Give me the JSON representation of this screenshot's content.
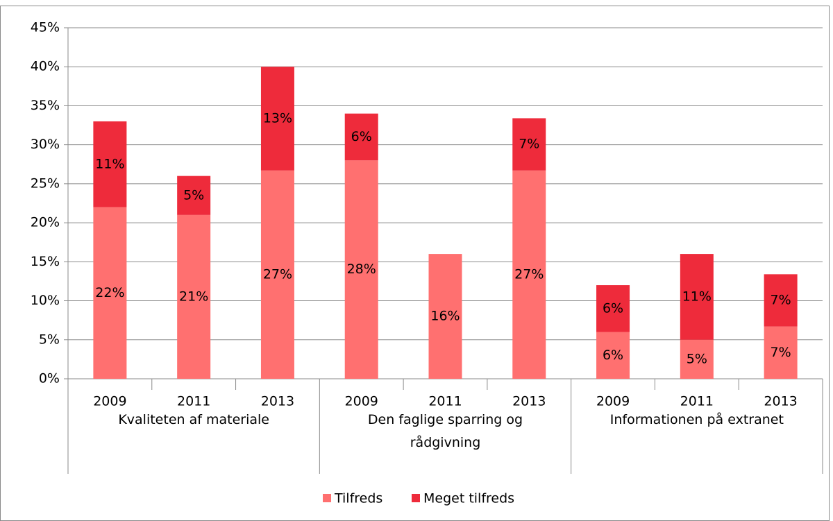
{
  "chart_data": {
    "type": "stacked_bar",
    "categories": [
      "2009",
      "2011",
      "2013",
      "2009",
      "2011",
      "2013",
      "2009",
      "2011",
      "2013"
    ],
    "groups": [
      "Kvaliteten af materiale",
      "Den faglige sparring og rådgivning",
      "Informationen på extranet"
    ],
    "series": [
      {
        "name": "Tilfreds",
        "color": "#ff7070",
        "values": [
          22,
          21,
          26.7,
          28,
          16,
          26.7,
          6,
          5,
          6.7
        ],
        "value_labels": [
          "22%",
          "21%",
          "27%",
          "28%",
          "16%",
          "27%",
          "6%",
          "5%",
          "7%"
        ]
      },
      {
        "name": "Meget tilfreds",
        "color": "#ee2b3b",
        "values": [
          11,
          5,
          13.3,
          6,
          null,
          6.7,
          6,
          11,
          6.7
        ],
        "value_labels": [
          "11%",
          "5%",
          "13%",
          "6%",
          null,
          "7%",
          "6%",
          "11%",
          "7%"
        ]
      }
    ],
    "ylim": [
      0,
      45
    ],
    "yticks": [
      {
        "value": 0,
        "label": "0%"
      },
      {
        "value": 5,
        "label": "5%"
      },
      {
        "value": 10,
        "label": "10%"
      },
      {
        "value": 15,
        "label": "15%"
      },
      {
        "value": 20,
        "label": "20%"
      },
      {
        "value": 25,
        "label": "25%"
      },
      {
        "value": 30,
        "label": "30%"
      },
      {
        "value": 35,
        "label": "35%"
      },
      {
        "value": 40,
        "label": "40%"
      },
      {
        "value": 45,
        "label": "45%"
      }
    ],
    "grid": true,
    "legend": "bottom"
  }
}
